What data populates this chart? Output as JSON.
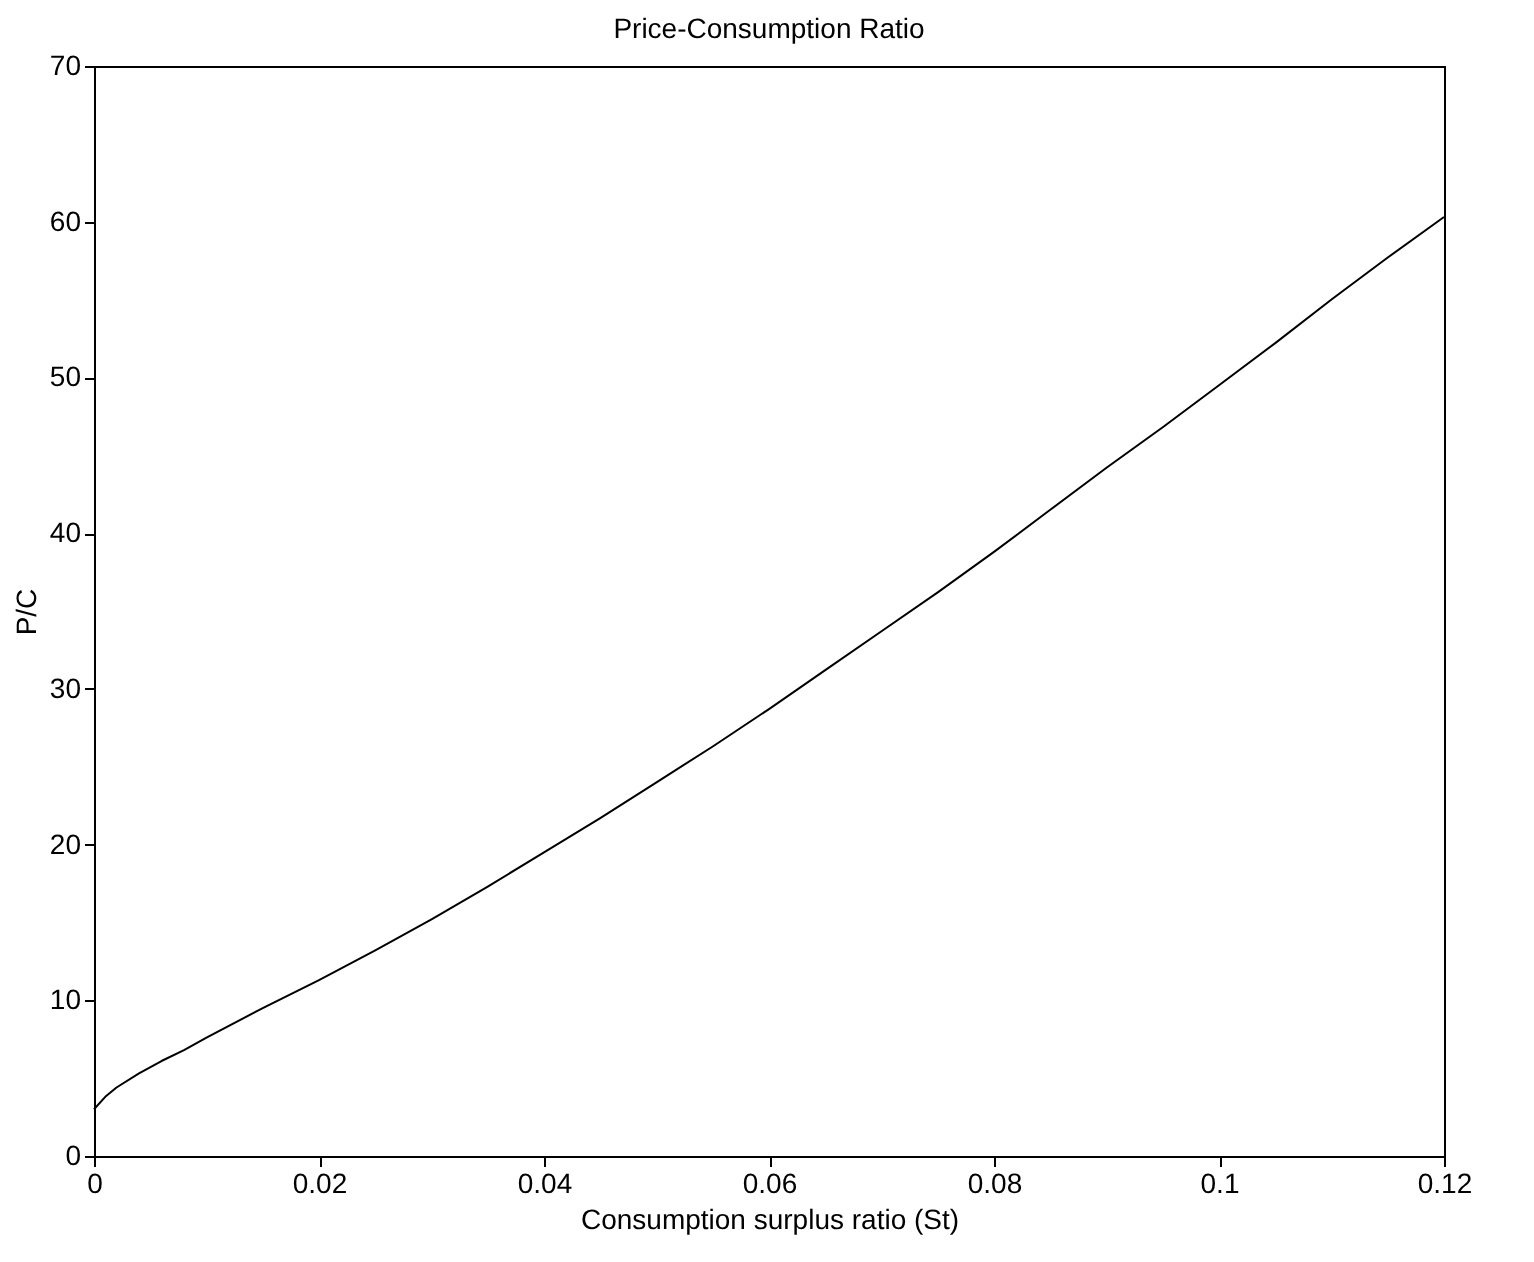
{
  "chart_data": {
    "type": "line",
    "title": "Price-Consumption Ratio",
    "xlabel": "Consumption surplus ratio (St)",
    "ylabel": "P/C",
    "x": [
      0,
      0.001,
      0.002,
      0.004,
      0.006,
      0.008,
      0.01,
      0.015,
      0.02,
      0.025,
      0.03,
      0.035,
      0.04,
      0.045,
      0.05,
      0.055,
      0.06,
      0.065,
      0.07,
      0.075,
      0.08,
      0.085,
      0.09,
      0.095,
      0.1,
      0.105,
      0.11,
      0.115,
      0.12
    ],
    "series": [
      {
        "color": "#000000",
        "values": [
          3,
          3.8,
          4.4,
          5.3,
          6.1,
          6.8,
          7.6,
          9.5,
          11.3,
          13.2,
          15.2,
          17.3,
          19.5,
          21.7,
          24,
          26.3,
          28.7,
          31.2,
          33.7,
          36.2,
          38.8,
          41.5,
          44.2,
          46.8,
          49.5,
          52.2,
          55,
          57.7,
          60.3
        ]
      }
    ],
    "xlim": [
      0,
      0.12
    ],
    "xticks": [
      0,
      0.02,
      0.04,
      0.06,
      0.08,
      0.1,
      0.12
    ],
    "ylim": [
      0,
      70
    ],
    "yticks": [
      0,
      10,
      20,
      30,
      40,
      50,
      60,
      70
    ],
    "grid": false,
    "legend": false,
    "marker": "none",
    "line_style": "solid"
  }
}
